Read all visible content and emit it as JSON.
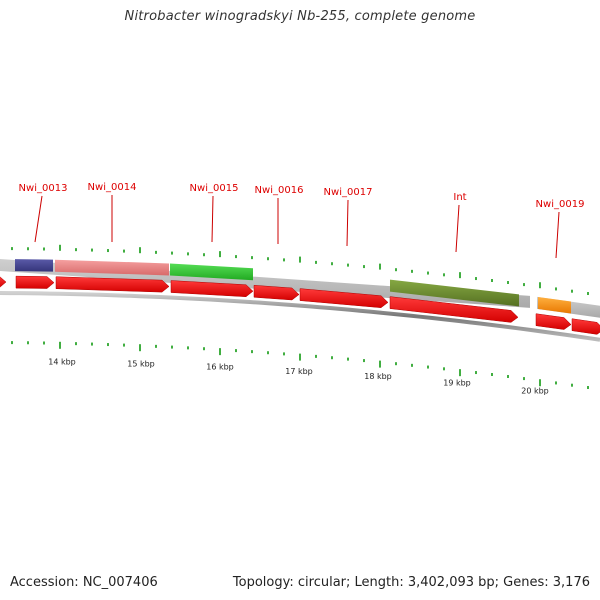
{
  "title": "Nitrobacter winogradskyi Nb-255, complete genome",
  "accession_text": "Accession: NC_007406",
  "summary_text": "Topology: circular; Length: 3,402,093 bp; Genes: 3,176",
  "gene_labels": [
    {
      "id": "Nwi_0013",
      "text": "Nwi_0013"
    },
    {
      "id": "Nwi_0014",
      "text": "Nwi_0014"
    },
    {
      "id": "Nwi_0015",
      "text": "Nwi_0015"
    },
    {
      "id": "Nwi_0016",
      "text": "Nwi_0016"
    },
    {
      "id": "Nwi_0017",
      "text": "Nwi_0017"
    },
    {
      "id": "Int",
      "text": "Int"
    },
    {
      "id": "Nwi_0019",
      "text": "Nwi_0019"
    }
  ],
  "scale_labels": [
    "14 kbp",
    "15 kbp",
    "16 kbp",
    "17 kbp",
    "18 kbp",
    "19 kbp",
    "20 kbp"
  ],
  "colors": {
    "gene_label": "#dd0000",
    "leader": "#cc0000",
    "cds_arrow": "#ff0000",
    "backbone": "#bbbbbb",
    "tick": "#119911",
    "navy_gene": "#4a4a96",
    "pink_gene": "#ef8a8a",
    "green_gene": "#38c838",
    "olive_gene": "#6f8f2f",
    "orange_gene": "#ff9922"
  }
}
